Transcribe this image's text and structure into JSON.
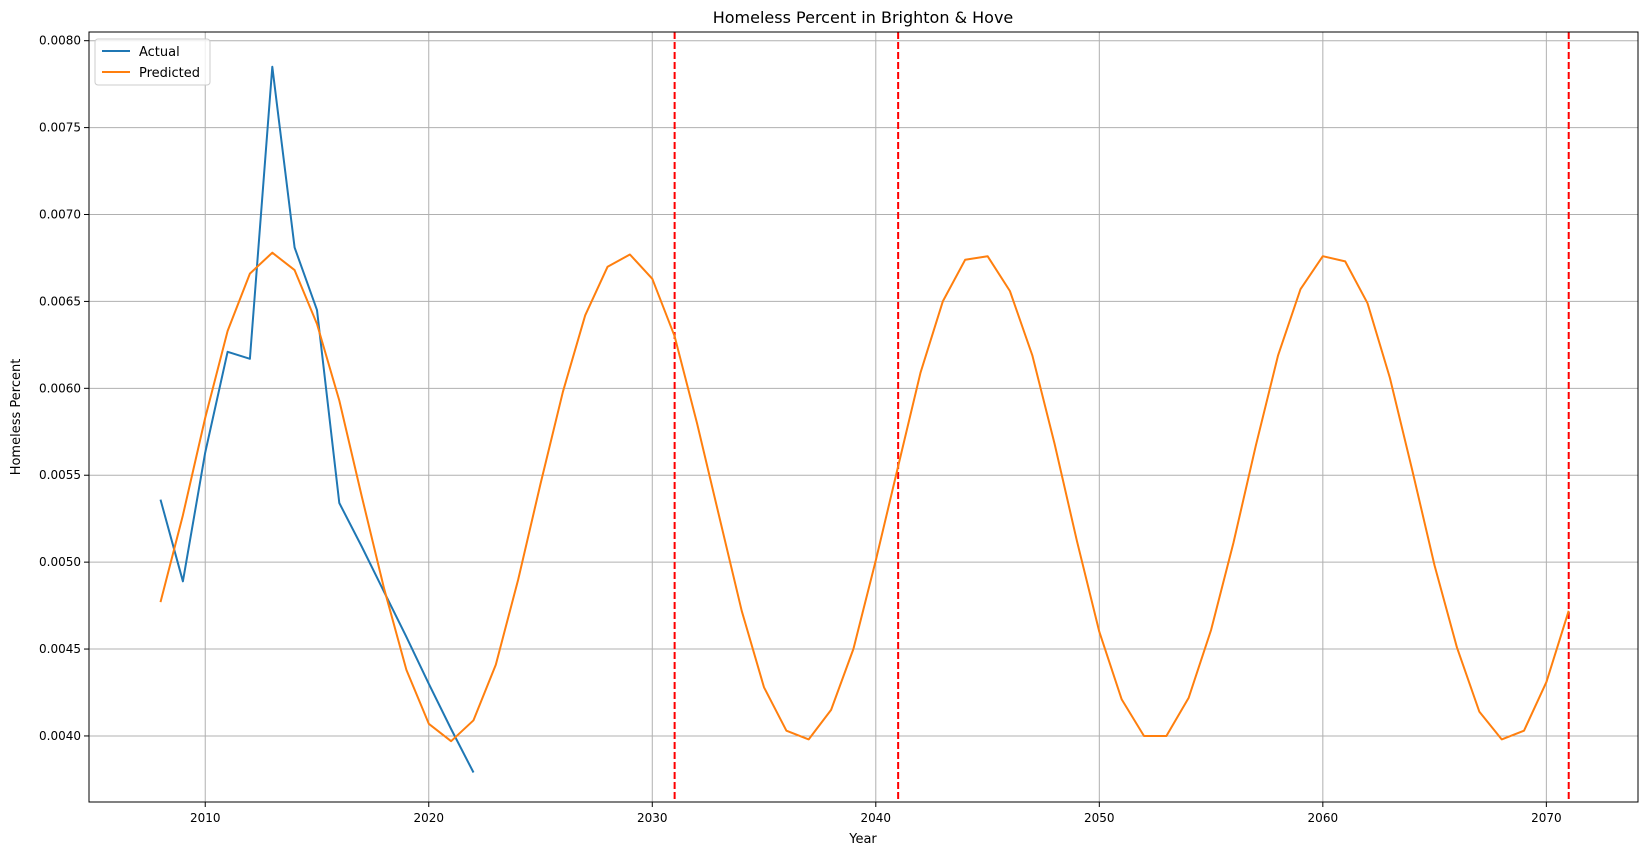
{
  "chart_data": {
    "type": "line",
    "title": "Homeless Percent in Brighton & Hove",
    "xlabel": "Year",
    "ylabel": "Homeless Percent",
    "xlim": [
      2004.8,
      2074.1
    ],
    "ylim": [
      0.00362,
      0.00805
    ],
    "xticks": [
      2010,
      2020,
      2030,
      2040,
      2050,
      2060,
      2070
    ],
    "yticks": [
      0.004,
      0.0045,
      0.005,
      0.0055,
      0.006,
      0.0065,
      0.007,
      0.0075,
      0.008
    ],
    "ytick_labels": [
      "0.0040",
      "0.0045",
      "0.0050",
      "0.0055",
      "0.0060",
      "0.0065",
      "0.0070",
      "0.0075",
      "0.0080"
    ],
    "grid": true,
    "legend_position": "top-left",
    "vlines": {
      "x": [
        2031,
        2041,
        2071
      ],
      "color": "#ff0000",
      "style": "dashed"
    },
    "series": [
      {
        "name": "Actual",
        "color": "#1f77b4",
        "x": [
          2008,
          2009,
          2010,
          2011,
          2012,
          2013,
          2014,
          2015,
          2016,
          2017,
          2018,
          2019,
          2020,
          2021,
          2022
        ],
        "values": [
          0.00536,
          0.00489,
          0.00563,
          0.00621,
          0.00617,
          0.00785,
          0.00681,
          0.00645,
          0.00534,
          0.00509,
          0.00483,
          0.00457,
          0.0043,
          0.00404,
          0.00379
        ]
      },
      {
        "name": "Predicted",
        "color": "#ff7f0e",
        "x": [
          2008,
          2009,
          2010,
          2011,
          2012,
          2013,
          2014,
          2015,
          2016,
          2017,
          2018,
          2019,
          2020,
          2021,
          2022,
          2023,
          2024,
          2025,
          2026,
          2027,
          2028,
          2029,
          2030,
          2031,
          2032,
          2033,
          2034,
          2035,
          2036,
          2037,
          2038,
          2039,
          2040,
          2041,
          2042,
          2043,
          2044,
          2045,
          2046,
          2047,
          2048,
          2049,
          2050,
          2051,
          2052,
          2053,
          2054,
          2055,
          2056,
          2057,
          2058,
          2059,
          2060,
          2061,
          2062,
          2063,
          2064,
          2065,
          2066,
          2067,
          2068,
          2069,
          2070,
          2071
        ],
        "values": [
          0.00477,
          0.00527,
          0.00583,
          0.00633,
          0.00666,
          0.00678,
          0.00668,
          0.00637,
          0.00593,
          0.00538,
          0.00485,
          0.00438,
          0.00407,
          0.00397,
          0.00409,
          0.00441,
          0.0049,
          0.00545,
          0.00598,
          0.00642,
          0.0067,
          0.00677,
          0.00663,
          0.0063,
          0.0058,
          0.00526,
          0.00472,
          0.00428,
          0.00403,
          0.00398,
          0.00415,
          0.0045,
          0.00501,
          0.00555,
          0.00609,
          0.0065,
          0.00674,
          0.00676,
          0.00656,
          0.00619,
          0.00568,
          0.00512,
          0.0046,
          0.00421,
          0.004,
          0.004,
          0.00422,
          0.00461,
          0.00511,
          0.00567,
          0.00619,
          0.00657,
          0.00676,
          0.00673,
          0.00649,
          0.00606,
          0.00553,
          0.00498,
          0.00451,
          0.00414,
          0.00398,
          0.00403,
          0.00431,
          0.00472
        ]
      }
    ]
  }
}
